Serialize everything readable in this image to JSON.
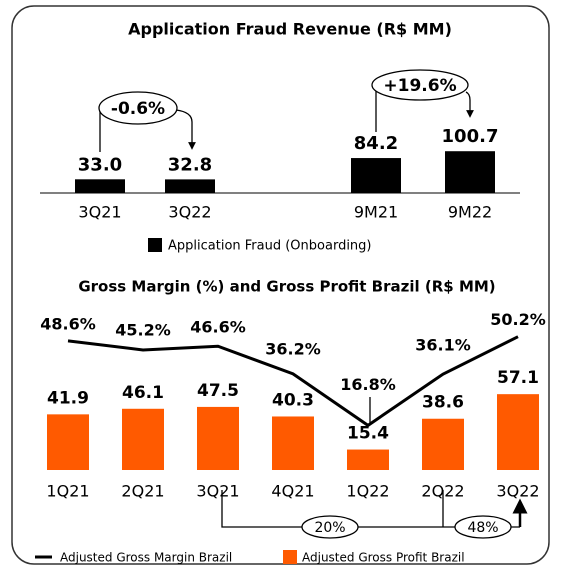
{
  "chart_data": [
    {
      "type": "bar",
      "title": "Application Fraud Revenue (R$ MM)",
      "categories": [
        "3Q21",
        "3Q22",
        "9M21",
        "9M22"
      ],
      "series": [
        {
          "name": "Application Fraud (Onboarding)",
          "color": "#000000",
          "values": [
            33.0,
            32.8,
            84.2,
            100.7
          ],
          "value_labels": [
            "33.0",
            "32.8",
            "84.2",
            "100.7"
          ]
        }
      ],
      "ylim": [
        0,
        200
      ],
      "annotations": [
        "-0.6%",
        "+19.6%"
      ]
    },
    {
      "type": "combo",
      "title": "Gross Margin (%) and Gross Profit Brazil (R$ MM)",
      "categories": [
        "1Q21",
        "2Q21",
        "3Q21",
        "4Q21",
        "1Q22",
        "2Q22",
        "3Q22"
      ],
      "series": [
        {
          "name": "Adjusted Gross Margin Brazil",
          "type": "line",
          "axis": "y2",
          "color": "#000000",
          "values": [
            48.6,
            45.2,
            46.6,
            36.2,
            16.8,
            36.1,
            50.2
          ],
          "value_labels": [
            "48.6%",
            "45.2%",
            "46.6%",
            "36.2%",
            "16.8%",
            "36.1%",
            "50.2%"
          ]
        },
        {
          "name": "Adjusted Gross Profit Brazil",
          "type": "bar",
          "color": "#ff5a00",
          "values": [
            41.9,
            46.1,
            47.5,
            40.3,
            15.4,
            38.6,
            57.1
          ]
        }
      ],
      "ylim": [
        0,
        128
      ],
      "y2lim": [
        0,
        64
      ],
      "annotations": [
        "20%",
        "48%"
      ]
    }
  ]
}
